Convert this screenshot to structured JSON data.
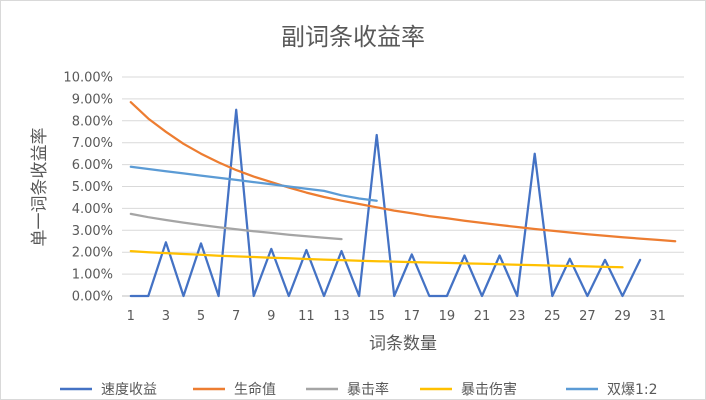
{
  "chart_data": {
    "type": "line",
    "title": "副词条收益率",
    "xlabel": "词条数量",
    "ylabel": "单一词条收益率",
    "x_ticks": [
      "1",
      "3",
      "5",
      "7",
      "9",
      "11",
      "13",
      "15",
      "17",
      "19",
      "21",
      "23",
      "25",
      "27",
      "29",
      "31"
    ],
    "y_ticks": [
      "0.00%",
      "1.00%",
      "2.00%",
      "3.00%",
      "4.00%",
      "5.00%",
      "6.00%",
      "7.00%",
      "8.00%",
      "9.00%",
      "10.00%"
    ],
    "xlim": [
      1,
      32
    ],
    "ylim": [
      0,
      10
    ],
    "grid": "horizontal",
    "legend_position": "bottom",
    "series": [
      {
        "name": "速度收益",
        "color": "#4472C4",
        "x": [
          1,
          2,
          3,
          4,
          5,
          6,
          7,
          8,
          9,
          10,
          11,
          12,
          13,
          14,
          15,
          16,
          17,
          18,
          19,
          20,
          21,
          22,
          23,
          24,
          25,
          26,
          27,
          28,
          29,
          30
        ],
        "y": [
          0,
          0,
          2.45,
          0,
          2.4,
          0,
          8.5,
          0,
          2.15,
          0,
          2.1,
          0,
          2.05,
          0,
          7.35,
          0,
          1.9,
          0,
          0,
          1.85,
          0,
          1.85,
          0,
          6.5,
          0,
          1.7,
          0,
          1.65,
          0,
          1.65
        ]
      },
      {
        "name": "生命值",
        "color": "#ED7D31",
        "x": [
          1,
          2,
          3,
          4,
          5,
          6,
          7,
          8,
          9,
          10,
          11,
          12,
          13,
          14,
          15,
          16,
          17,
          18,
          19,
          20,
          21,
          22,
          23,
          24,
          25,
          26,
          27,
          28,
          29,
          30,
          31,
          32
        ],
        "y": [
          8.85,
          8.1,
          7.5,
          6.95,
          6.5,
          6.1,
          5.75,
          5.45,
          5.2,
          4.95,
          4.72,
          4.52,
          4.35,
          4.2,
          4.05,
          3.9,
          3.78,
          3.65,
          3.55,
          3.44,
          3.34,
          3.24,
          3.15,
          3.06,
          2.98,
          2.9,
          2.82,
          2.75,
          2.68,
          2.62,
          2.56,
          2.5
        ]
      },
      {
        "name": "暴击率",
        "color": "#A5A5A5",
        "x": [
          1,
          2,
          3,
          4,
          5,
          6,
          7,
          8,
          9,
          10,
          11,
          12,
          13
        ],
        "y": [
          3.75,
          3.6,
          3.47,
          3.35,
          3.24,
          3.14,
          3.05,
          2.96,
          2.88,
          2.8,
          2.73,
          2.66,
          2.6
        ]
      },
      {
        "name": "暴击伤害",
        "color": "#FFC000",
        "x": [
          1,
          2,
          3,
          4,
          5,
          6,
          7,
          8,
          9,
          10,
          11,
          12,
          13,
          14,
          15,
          16,
          17,
          18,
          19,
          20,
          21,
          22,
          23,
          24,
          25,
          26,
          27,
          28,
          29
        ],
        "y": [
          2.05,
          2.0,
          1.96,
          1.92,
          1.88,
          1.84,
          1.81,
          1.78,
          1.75,
          1.72,
          1.69,
          1.66,
          1.64,
          1.61,
          1.59,
          1.57,
          1.55,
          1.53,
          1.51,
          1.49,
          1.47,
          1.45,
          1.43,
          1.41,
          1.39,
          1.37,
          1.35,
          1.33,
          1.31
        ]
      },
      {
        "name": "双爆1:2",
        "color": "#5B9BD5",
        "x": [
          1,
          2,
          3,
          4,
          5,
          6,
          7,
          8,
          9,
          10,
          11,
          12,
          13,
          14,
          15
        ],
        "y": [
          5.9,
          5.8,
          5.7,
          5.6,
          5.5,
          5.4,
          5.3,
          5.2,
          5.1,
          5.0,
          4.9,
          4.8,
          4.6,
          4.45,
          4.35
        ]
      }
    ]
  }
}
